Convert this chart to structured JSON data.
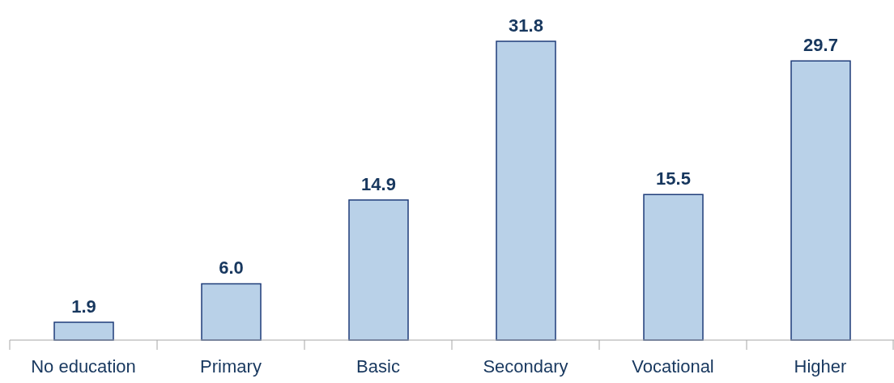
{
  "chart_data": {
    "type": "bar",
    "categories": [
      "No education",
      "Primary",
      "Basic",
      "Secondary",
      "Vocational",
      "Higher"
    ],
    "values": [
      1.9,
      6.0,
      14.9,
      31.8,
      15.5,
      29.7
    ],
    "value_labels": [
      "1.9",
      "6.0",
      "14.9",
      "31.8",
      "15.5",
      "29.7"
    ],
    "color": "#b9d1e8"
  }
}
